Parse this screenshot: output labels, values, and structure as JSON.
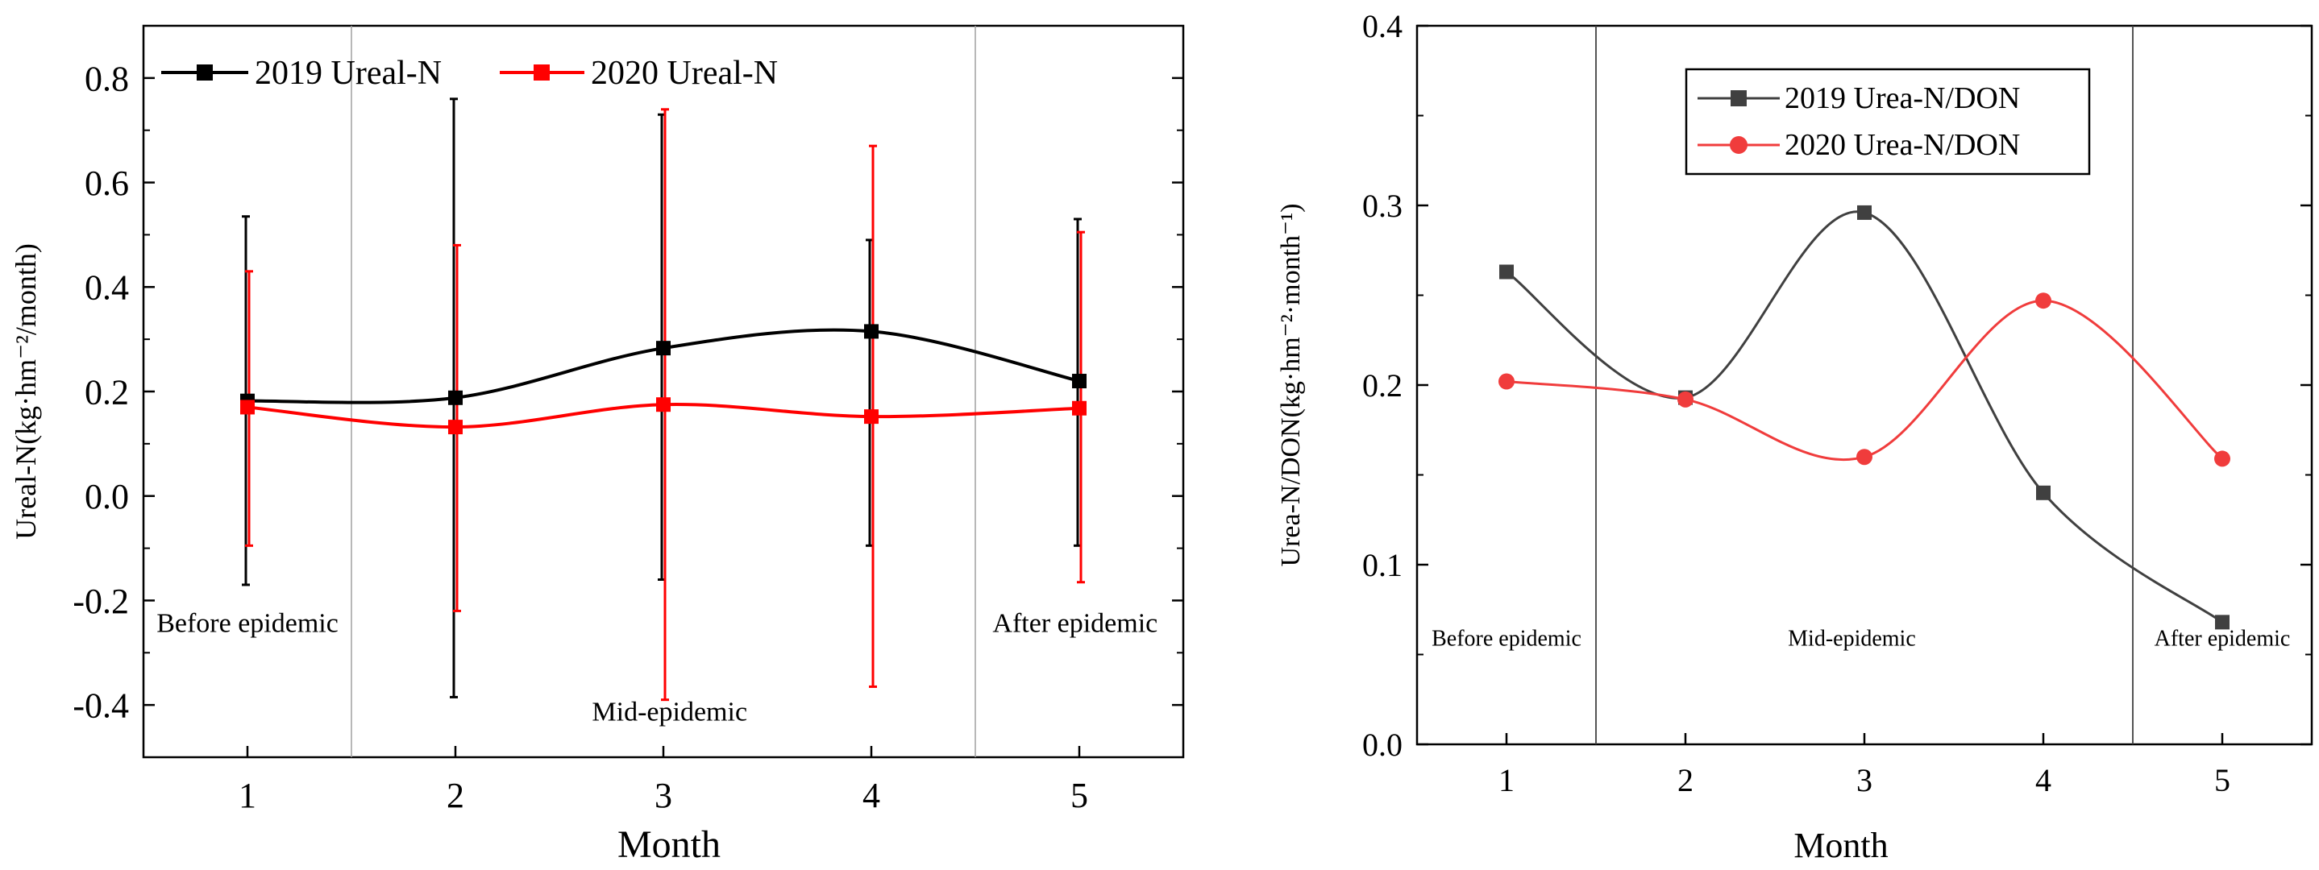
{
  "chart_data": [
    {
      "type": "line",
      "title": "",
      "xlabel": "Month",
      "ylabel": "Ureal-N(kg·hm⁻²/month)",
      "categories": [
        1,
        2,
        3,
        4,
        5
      ],
      "xlim": [
        0.5,
        5.5
      ],
      "ylim": [
        -0.5,
        0.9
      ],
      "yticks": [
        -0.4,
        -0.2,
        0.0,
        0.2,
        0.4,
        0.6,
        0.8
      ],
      "ytick_labels": [
        "-0.4",
        "-0.2",
        "0.0",
        "0.2",
        "0.4",
        "0.6",
        "0.8"
      ],
      "xtick_labels": [
        "1",
        "2",
        "3",
        "4",
        "5"
      ],
      "grid": false,
      "legend_position": "top-left",
      "dividers": [
        1.5,
        4.5
      ],
      "annotations": [
        {
          "text": "Before epidemic",
          "x": 1.0,
          "y": -0.26
        },
        {
          "text": "Mid-epidemic",
          "x": 3.03,
          "y": -0.43
        },
        {
          "text": "After epidemic",
          "x": 4.98,
          "y": -0.26
        }
      ],
      "series": [
        {
          "name": "2019 Ureal-N",
          "color": "#000000",
          "marker": "square",
          "values": [
            0.182,
            0.188,
            0.283,
            0.315,
            0.22
          ],
          "err_low": [
            -0.17,
            -0.385,
            -0.16,
            -0.095,
            -0.095
          ],
          "err_high": [
            0.535,
            0.76,
            0.73,
            0.49,
            0.53
          ]
        },
        {
          "name": "2020 Ureal-N",
          "color": "#ff0000",
          "marker": "square",
          "values": [
            0.17,
            0.132,
            0.175,
            0.152,
            0.168
          ],
          "err_low": [
            -0.095,
            -0.22,
            -0.39,
            -0.365,
            -0.165
          ],
          "err_high": [
            0.43,
            0.48,
            0.74,
            0.67,
            0.505
          ]
        }
      ]
    },
    {
      "type": "line",
      "title": "",
      "xlabel": "Month",
      "ylabel": "Urea-N/DON(kg·hm⁻²·month⁻¹)",
      "categories": [
        1,
        2,
        3,
        4,
        5
      ],
      "xlim": [
        0.5,
        5.5
      ],
      "ylim": [
        0.0,
        0.4
      ],
      "yticks": [
        0.0,
        0.1,
        0.2,
        0.3,
        0.4
      ],
      "ytick_labels": [
        "0.0",
        "0.1",
        "0.2",
        "0.3",
        "0.4"
      ],
      "xtick_labels": [
        "1",
        "2",
        "3",
        "4",
        "5"
      ],
      "grid": false,
      "legend_position": "top-center",
      "dividers": [
        1.5,
        4.5
      ],
      "annotations": [
        {
          "text": "Before epidemic",
          "x": 1.0,
          "y": 0.055
        },
        {
          "text": "Mid-epidemic",
          "x": 2.93,
          "y": 0.055
        },
        {
          "text": "After epidemic",
          "x": 5.0,
          "y": 0.055
        }
      ],
      "series": [
        {
          "name": "2019 Urea-N/DON",
          "color": "#404040",
          "marker": "square",
          "values": [
            0.263,
            0.193,
            0.296,
            0.14,
            0.068
          ]
        },
        {
          "name": "2020 Urea-N/DON",
          "color": "#f03c3c",
          "marker": "circle",
          "values": [
            0.202,
            0.192,
            0.16,
            0.247,
            0.159
          ]
        }
      ]
    }
  ]
}
